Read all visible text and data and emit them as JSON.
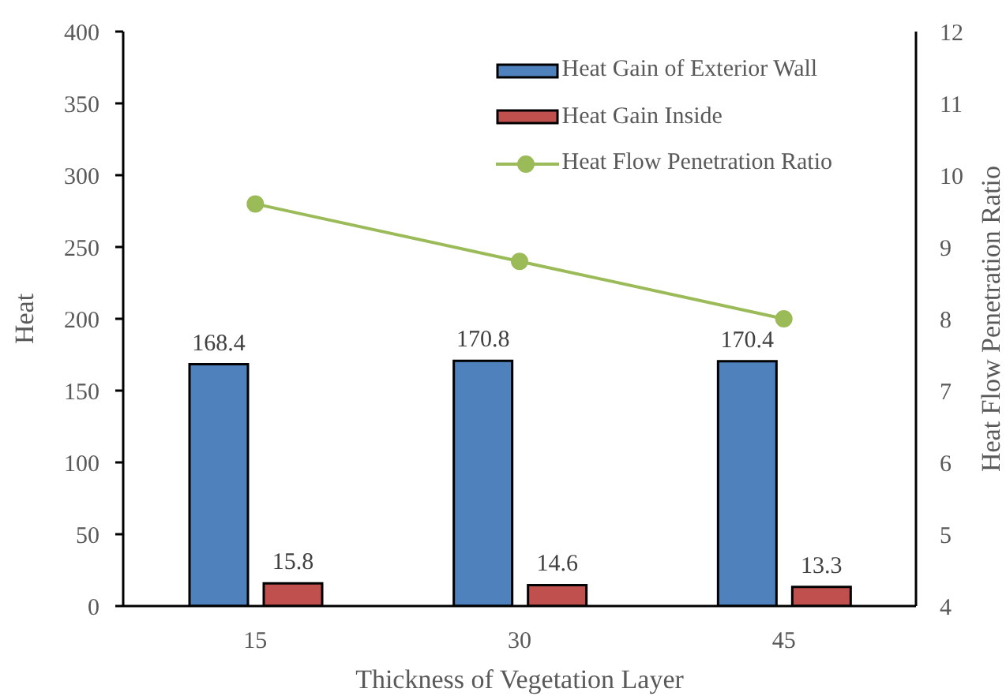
{
  "chart_data": {
    "type": "bar",
    "xlabel": "Thickness of Vegetation Layer",
    "ylabel": "Heat",
    "y2label": "Heat Flow Penetration Ratio",
    "categories": [
      "15",
      "30",
      "45"
    ],
    "series": [
      {
        "name": "Heat Gain of Exterior Wall",
        "color": "#4f81bd",
        "values": [
          168.4,
          170.8,
          170.4
        ],
        "value_labels": [
          "168.4",
          "170.8",
          "170.4"
        ]
      },
      {
        "name": "Heat Gain Inside",
        "color": "#c0504d",
        "values": [
          15.8,
          14.6,
          13.3
        ],
        "value_labels": [
          "15.8",
          "14.6",
          "13.3"
        ]
      },
      {
        "name": "Heat Flow Penetration Ratio",
        "type": "line",
        "axis": "y2",
        "color": "#9bbb59",
        "values": [
          9.6,
          8.8,
          8.0
        ]
      }
    ],
    "ylim": [
      0,
      400
    ],
    "yticks": [
      0,
      50,
      100,
      150,
      200,
      250,
      300,
      350,
      400
    ],
    "y2lim": [
      4,
      12
    ],
    "y2ticks": [
      4,
      5,
      6,
      7,
      8,
      9,
      10,
      11,
      12
    ],
    "legend": "top right",
    "marker": "circle",
    "line_style": "solid"
  }
}
